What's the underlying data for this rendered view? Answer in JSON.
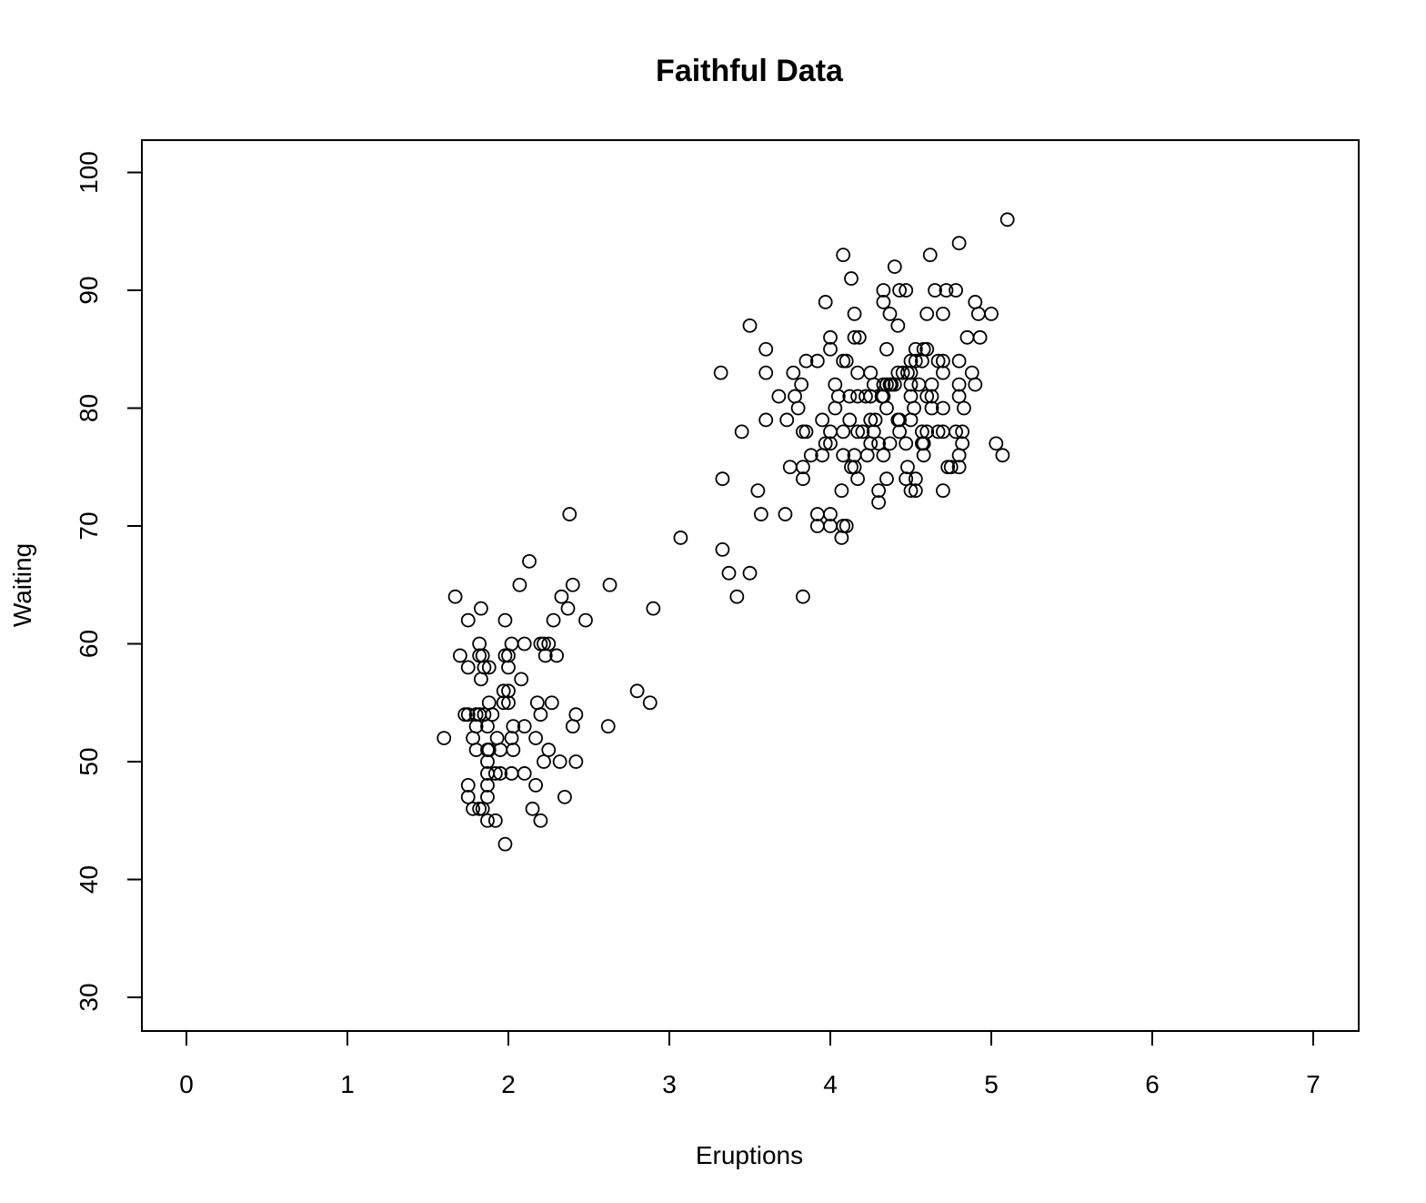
{
  "chart_data": {
    "type": "scatter",
    "title": "Faithful Data",
    "xlabel": "Eruptions",
    "ylabel": "Waiting",
    "xlim": [
      0,
      7
    ],
    "ylim": [
      30,
      100
    ],
    "xticks": [
      0,
      1,
      2,
      3,
      4,
      5,
      6,
      7
    ],
    "yticks": [
      30,
      40,
      50,
      60,
      70,
      80,
      90,
      100
    ],
    "grid": false,
    "marker": "open-circle",
    "points": [
      [
        1.6,
        52
      ],
      [
        1.67,
        64
      ],
      [
        1.7,
        59
      ],
      [
        1.73,
        54
      ],
      [
        1.75,
        54
      ],
      [
        1.75,
        62
      ],
      [
        1.75,
        58
      ],
      [
        1.75,
        48
      ],
      [
        1.75,
        47
      ],
      [
        1.78,
        52
      ],
      [
        1.78,
        46
      ],
      [
        1.8,
        54
      ],
      [
        1.8,
        53
      ],
      [
        1.8,
        51
      ],
      [
        1.82,
        60
      ],
      [
        1.82,
        59
      ],
      [
        1.82,
        54
      ],
      [
        1.82,
        46
      ],
      [
        1.83,
        63
      ],
      [
        1.83,
        57
      ],
      [
        1.84,
        59
      ],
      [
        1.84,
        46
      ],
      [
        1.85,
        58
      ],
      [
        1.85,
        54
      ],
      [
        1.87,
        53
      ],
      [
        1.87,
        51
      ],
      [
        1.87,
        50
      ],
      [
        1.87,
        49
      ],
      [
        1.87,
        48
      ],
      [
        1.87,
        47
      ],
      [
        1.87,
        45
      ],
      [
        1.88,
        55
      ],
      [
        1.88,
        51
      ],
      [
        1.88,
        58
      ],
      [
        1.9,
        54
      ],
      [
        1.92,
        49
      ],
      [
        1.92,
        45
      ],
      [
        1.93,
        52
      ],
      [
        1.95,
        49
      ],
      [
        1.95,
        51
      ],
      [
        1.97,
        56
      ],
      [
        1.97,
        55
      ],
      [
        1.98,
        62
      ],
      [
        1.98,
        59
      ],
      [
        1.98,
        43
      ],
      [
        2.0,
        59
      ],
      [
        2.0,
        58
      ],
      [
        2.0,
        56
      ],
      [
        2.0,
        55
      ],
      [
        2.02,
        60
      ],
      [
        2.02,
        52
      ],
      [
        2.02,
        49
      ],
      [
        2.03,
        53
      ],
      [
        2.03,
        51
      ],
      [
        2.07,
        65
      ],
      [
        2.08,
        57
      ],
      [
        2.1,
        60
      ],
      [
        2.1,
        53
      ],
      [
        2.1,
        49
      ],
      [
        2.13,
        67
      ],
      [
        2.15,
        46
      ],
      [
        2.17,
        52
      ],
      [
        2.17,
        48
      ],
      [
        2.18,
        55
      ],
      [
        2.2,
        60
      ],
      [
        2.2,
        54
      ],
      [
        2.2,
        45
      ],
      [
        2.22,
        60
      ],
      [
        2.22,
        50
      ],
      [
        2.23,
        59
      ],
      [
        2.25,
        60
      ],
      [
        2.25,
        51
      ],
      [
        2.27,
        55
      ],
      [
        2.28,
        62
      ],
      [
        2.3,
        59
      ],
      [
        2.32,
        50
      ],
      [
        2.33,
        64
      ],
      [
        2.35,
        47
      ],
      [
        2.37,
        63
      ],
      [
        2.38,
        71
      ],
      [
        2.4,
        65
      ],
      [
        2.4,
        53
      ],
      [
        2.42,
        54
      ],
      [
        2.42,
        50
      ],
      [
        2.48,
        62
      ],
      [
        2.62,
        53
      ],
      [
        2.63,
        65
      ],
      [
        2.8,
        56
      ],
      [
        2.88,
        55
      ],
      [
        2.9,
        63
      ],
      [
        3.07,
        69
      ],
      [
        3.32,
        83
      ],
      [
        3.33,
        74
      ],
      [
        3.33,
        68
      ],
      [
        3.37,
        66
      ],
      [
        3.42,
        64
      ],
      [
        3.45,
        78
      ],
      [
        3.5,
        87
      ],
      [
        3.5,
        66
      ],
      [
        3.55,
        73
      ],
      [
        3.57,
        71
      ],
      [
        3.6,
        85
      ],
      [
        3.6,
        83
      ],
      [
        3.6,
        79
      ],
      [
        3.68,
        81
      ],
      [
        3.72,
        71
      ],
      [
        3.73,
        79
      ],
      [
        3.75,
        75
      ],
      [
        3.77,
        83
      ],
      [
        3.78,
        81
      ],
      [
        3.8,
        80
      ],
      [
        3.82,
        82
      ],
      [
        3.83,
        78
      ],
      [
        3.83,
        75
      ],
      [
        3.83,
        74
      ],
      [
        3.83,
        64
      ],
      [
        3.85,
        84
      ],
      [
        3.85,
        78
      ],
      [
        3.88,
        76
      ],
      [
        3.92,
        84
      ],
      [
        3.92,
        71
      ],
      [
        3.92,
        70
      ],
      [
        3.95,
        79
      ],
      [
        3.95,
        76
      ],
      [
        3.97,
        89
      ],
      [
        3.97,
        77
      ],
      [
        4.0,
        86
      ],
      [
        4.0,
        85
      ],
      [
        4.0,
        78
      ],
      [
        4.0,
        77
      ],
      [
        4.0,
        71
      ],
      [
        4.0,
        70
      ],
      [
        4.03,
        82
      ],
      [
        4.03,
        80
      ],
      [
        4.05,
        81
      ],
      [
        4.07,
        73
      ],
      [
        4.07,
        69
      ],
      [
        4.08,
        93
      ],
      [
        4.08,
        84
      ],
      [
        4.08,
        78
      ],
      [
        4.08,
        76
      ],
      [
        4.08,
        70
      ],
      [
        4.1,
        84
      ],
      [
        4.1,
        70
      ],
      [
        4.12,
        81
      ],
      [
        4.12,
        79
      ],
      [
        4.13,
        91
      ],
      [
        4.13,
        75
      ],
      [
        4.15,
        88
      ],
      [
        4.15,
        86
      ],
      [
        4.15,
        76
      ],
      [
        4.15,
        75
      ],
      [
        4.17,
        83
      ],
      [
        4.17,
        81
      ],
      [
        4.17,
        78
      ],
      [
        4.17,
        74
      ],
      [
        4.18,
        86
      ],
      [
        4.2,
        78
      ],
      [
        4.22,
        81
      ],
      [
        4.23,
        76
      ],
      [
        4.25,
        83
      ],
      [
        4.25,
        81
      ],
      [
        4.25,
        79
      ],
      [
        4.25,
        77
      ],
      [
        4.27,
        82
      ],
      [
        4.27,
        78
      ],
      [
        4.28,
        79
      ],
      [
        4.3,
        77
      ],
      [
        4.3,
        73
      ],
      [
        4.3,
        72
      ],
      [
        4.32,
        81
      ],
      [
        4.33,
        90
      ],
      [
        4.33,
        89
      ],
      [
        4.33,
        82
      ],
      [
        4.33,
        81
      ],
      [
        4.33,
        76
      ],
      [
        4.35,
        85
      ],
      [
        4.35,
        82
      ],
      [
        4.35,
        80
      ],
      [
        4.35,
        74
      ],
      [
        4.37,
        88
      ],
      [
        4.37,
        82
      ],
      [
        4.37,
        77
      ],
      [
        4.38,
        82
      ],
      [
        4.4,
        92
      ],
      [
        4.4,
        82
      ],
      [
        4.42,
        87
      ],
      [
        4.42,
        83
      ],
      [
        4.42,
        79
      ],
      [
        4.43,
        90
      ],
      [
        4.43,
        79
      ],
      [
        4.43,
        78
      ],
      [
        4.45,
        83
      ],
      [
        4.47,
        90
      ],
      [
        4.47,
        77
      ],
      [
        4.47,
        74
      ],
      [
        4.48,
        83
      ],
      [
        4.48,
        75
      ],
      [
        4.5,
        84
      ],
      [
        4.5,
        83
      ],
      [
        4.5,
        82
      ],
      [
        4.5,
        81
      ],
      [
        4.5,
        79
      ],
      [
        4.5,
        73
      ],
      [
        4.52,
        80
      ],
      [
        4.53,
        85
      ],
      [
        4.53,
        84
      ],
      [
        4.53,
        74
      ],
      [
        4.53,
        73
      ],
      [
        4.55,
        82
      ],
      [
        4.57,
        84
      ],
      [
        4.57,
        78
      ],
      [
        4.57,
        77
      ],
      [
        4.58,
        85
      ],
      [
        4.58,
        77
      ],
      [
        4.58,
        76
      ],
      [
        4.6,
        88
      ],
      [
        4.6,
        85
      ],
      [
        4.6,
        81
      ],
      [
        4.6,
        78
      ],
      [
        4.62,
        93
      ],
      [
        4.63,
        82
      ],
      [
        4.63,
        81
      ],
      [
        4.63,
        80
      ],
      [
        4.65,
        90
      ],
      [
        4.67,
        84
      ],
      [
        4.67,
        78
      ],
      [
        4.7,
        88
      ],
      [
        4.7,
        84
      ],
      [
        4.7,
        83
      ],
      [
        4.7,
        80
      ],
      [
        4.7,
        78
      ],
      [
        4.7,
        73
      ],
      [
        4.72,
        90
      ],
      [
        4.73,
        75
      ],
      [
        4.75,
        75
      ],
      [
        4.78,
        90
      ],
      [
        4.78,
        78
      ],
      [
        4.8,
        94
      ],
      [
        4.8,
        84
      ],
      [
        4.8,
        82
      ],
      [
        4.8,
        81
      ],
      [
        4.8,
        76
      ],
      [
        4.8,
        75
      ],
      [
        4.82,
        78
      ],
      [
        4.82,
        77
      ],
      [
        4.83,
        80
      ],
      [
        4.85,
        86
      ],
      [
        4.88,
        83
      ],
      [
        4.9,
        89
      ],
      [
        4.9,
        82
      ],
      [
        4.92,
        88
      ],
      [
        4.93,
        86
      ],
      [
        5.0,
        88
      ],
      [
        5.03,
        77
      ],
      [
        5.07,
        76
      ],
      [
        5.1,
        96
      ]
    ]
  }
}
